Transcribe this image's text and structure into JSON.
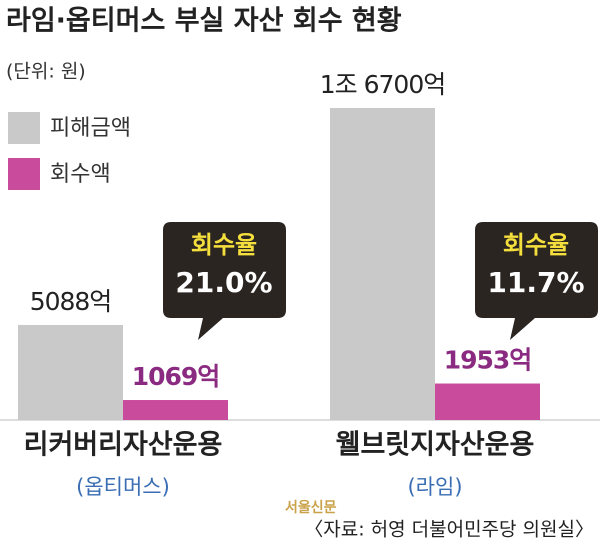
{
  "chart_data": {
    "type": "bar",
    "title": "라임·옵티머스 부실 자산 회수 현황",
    "subtitle": "(단위: 원)",
    "categories": [
      "리커버리자산운용",
      "웰브릿지자산운용"
    ],
    "category_notes": [
      "(옵티머스)",
      "(라임)"
    ],
    "series": [
      {
        "name": "피해금액",
        "color": "#c9c9c9",
        "label_color": "#222222",
        "values": [
          5088,
          16700
        ],
        "value_labels": [
          "5088억",
          "1조 6700억"
        ]
      },
      {
        "name": "회수액",
        "color": "#c94b9c",
        "label_color": "#8a2a80",
        "values": [
          1069,
          1953
        ],
        "value_labels": [
          "1069억",
          "1953억"
        ]
      }
    ],
    "annotations": [
      {
        "title": "회수율",
        "text": "21.0%"
      },
      {
        "title": "회수율",
        "text": "11.7%"
      }
    ],
    "watermark": "서울신문",
    "source": "〈자료: 허영 더불어민주당 의원실〉"
  }
}
